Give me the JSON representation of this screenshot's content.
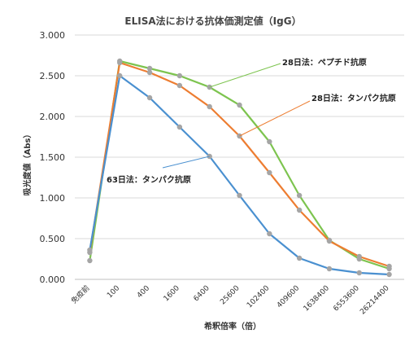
{
  "chart_data": {
    "type": "line",
    "title": "ELISA法における抗体価測定値（IgG）",
    "xlabel": "希釈倍率（倍）",
    "ylabel": "吸光度値（Abs）",
    "ylim": [
      0,
      3.0
    ],
    "yticks": [
      "0.000",
      "0.500",
      "1.000",
      "1.500",
      "2.000",
      "2.500",
      "3.000"
    ],
    "grid": true,
    "categories": [
      "免疫前",
      "100",
      "400",
      "1600",
      "6400",
      "25600",
      "102400",
      "409600",
      "1638400",
      "6553600",
      "26214400"
    ],
    "series": [
      {
        "name": "28日法：ペプチド抗原",
        "color": "#7dc44f",
        "values": [
          0.23,
          2.68,
          2.59,
          2.5,
          2.36,
          2.14,
          1.69,
          1.03,
          0.48,
          0.25,
          0.13
        ]
      },
      {
        "name": "28日法：タンパク抗原",
        "color": "#ed7d31",
        "values": [
          0.33,
          2.66,
          2.54,
          2.38,
          2.12,
          1.76,
          1.31,
          0.85,
          0.47,
          0.28,
          0.16
        ]
      },
      {
        "name": "63日法：タンパク抗原",
        "color": "#4a90d0",
        "values": [
          0.36,
          2.5,
          2.23,
          1.87,
          1.51,
          1.03,
          0.56,
          0.26,
          0.13,
          0.08,
          0.06
        ]
      }
    ]
  }
}
